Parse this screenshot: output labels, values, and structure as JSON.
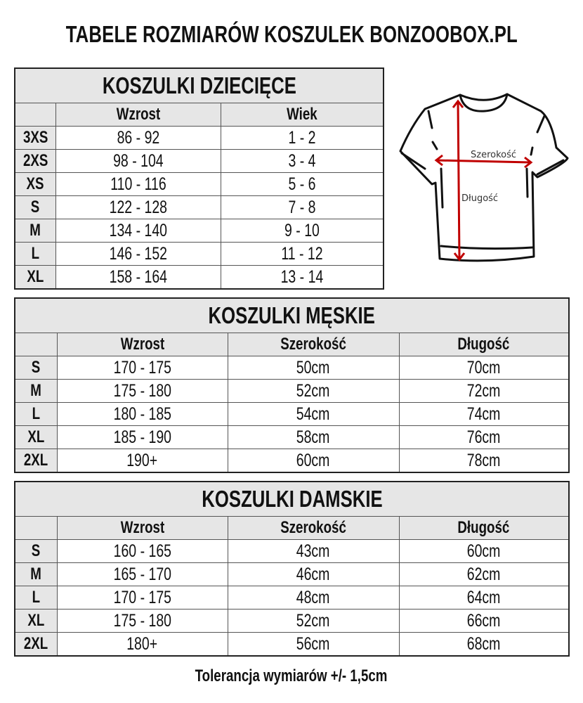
{
  "title": "TABELE ROZMIARÓW KOSZULEK BONZOOBOX.PL",
  "kids": {
    "title": "KOSZULKI DZIECIĘCE",
    "headers": [
      "",
      "Wzrost",
      "Wiek"
    ],
    "rows": [
      [
        "3XS",
        "86 - 92",
        "1 - 2"
      ],
      [
        "2XS",
        "98 - 104",
        "3 - 4"
      ],
      [
        "XS",
        "110 - 116",
        "5 - 6"
      ],
      [
        "S",
        "122 - 128",
        "7 - 8"
      ],
      [
        "M",
        "134 - 140",
        "9 - 10"
      ],
      [
        "L",
        "146 - 152",
        "11 - 12"
      ],
      [
        "XL",
        "158 - 164",
        "13 - 14"
      ]
    ]
  },
  "men": {
    "title": "KOSZULKI MĘSKIE",
    "headers": [
      "",
      "Wzrost",
      "Szerokość",
      "Długość"
    ],
    "rows": [
      [
        "S",
        "170 - 175",
        "50cm",
        "70cm"
      ],
      [
        "M",
        "175 - 180",
        "52cm",
        "72cm"
      ],
      [
        "L",
        "180 - 185",
        "54cm",
        "74cm"
      ],
      [
        "XL",
        "185 - 190",
        "58cm",
        "76cm"
      ],
      [
        "2XL",
        "190+",
        "60cm",
        "78cm"
      ]
    ]
  },
  "women": {
    "title": "KOSZULKI DAMSKIE",
    "headers": [
      "",
      "Wzrost",
      "Szerokość",
      "Długość"
    ],
    "rows": [
      [
        "S",
        "160 - 165",
        "43cm",
        "60cm"
      ],
      [
        "M",
        "165 - 170",
        "46cm",
        "62cm"
      ],
      [
        "L",
        "170 - 175",
        "48cm",
        "64cm"
      ],
      [
        "XL",
        "175 - 180",
        "52cm",
        "66cm"
      ],
      [
        "2XL",
        "180+",
        "56cm",
        "68cm"
      ]
    ]
  },
  "diagram": {
    "width_label": "Szerokość",
    "length_label": "Długość",
    "arrow_color": "#c00000"
  },
  "footer": "Tolerancja wymiarów +/- 1,5cm"
}
